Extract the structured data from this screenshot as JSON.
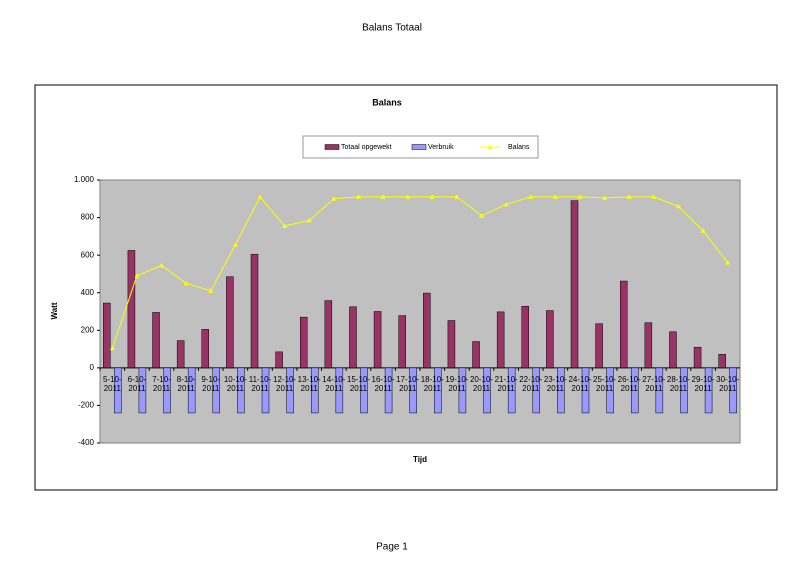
{
  "page": {
    "header": "Balans Totaal",
    "footer": "Page 1"
  },
  "chart_data": {
    "type": "bar",
    "title": "Balans",
    "x_label": "Tijd",
    "y_label": "Watt",
    "categories": [
      "5-10-2011",
      "6-10-2011",
      "7-10-2011",
      "8-10-2011",
      "9-10-2011",
      "10-10-2011",
      "11-10-2011",
      "12-10-2011",
      "13-10-2011",
      "14-10-2011",
      "15-10-2011",
      "16-10-2011",
      "17-10-2011",
      "18-10-2011",
      "19-10-2011",
      "20-10-2011",
      "21-10-2011",
      "22-10-2011",
      "23-10-2011",
      "24-10-2011",
      "25-10-2011",
      "26-10-2011",
      "27-10-2011",
      "28-10-2011",
      "29-10-2011",
      "30-10-2011"
    ],
    "series": [
      {
        "name": "Totaal opgewekt",
        "type": "bar",
        "color": "#993366",
        "values": [
          345,
          625,
          295,
          145,
          205,
          485,
          605,
          85,
          270,
          358,
          325,
          300,
          278,
          398,
          252,
          140,
          298,
          328,
          305,
          890,
          235,
          462,
          240,
          192,
          110,
          72
        ]
      },
      {
        "name": "Verbruik",
        "type": "bar",
        "color": "#9999ff",
        "values": [
          -240,
          -240,
          -240,
          -240,
          -240,
          -240,
          -240,
          -240,
          -240,
          -240,
          -240,
          -240,
          -240,
          -240,
          -240,
          -240,
          -240,
          -240,
          -240,
          -240,
          -240,
          -240,
          -240,
          -240,
          -240,
          -240
        ]
      },
      {
        "name": "Balans",
        "type": "line",
        "color": "#ffff00",
        "values": [
          105,
          490,
          545,
          450,
          410,
          655,
          910,
          755,
          785,
          900,
          910,
          910,
          910,
          910,
          910,
          810,
          870,
          910,
          910,
          910,
          905,
          910,
          910,
          860,
          730,
          560
        ]
      }
    ],
    "ylim": [
      -400,
      1000
    ],
    "yticks": [
      -400,
      -200,
      0,
      200,
      400,
      600,
      800,
      {
        "value": 1000,
        "label": "1.000"
      }
    ],
    "legend": "top"
  }
}
